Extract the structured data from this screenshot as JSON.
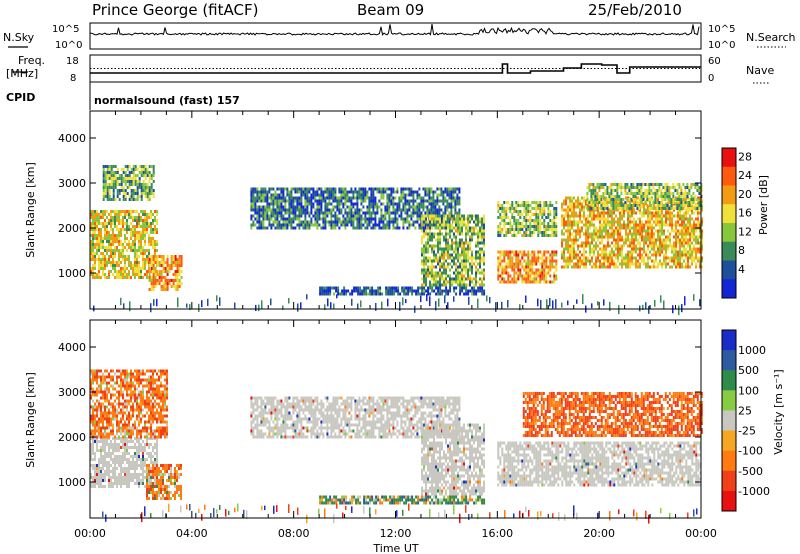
{
  "header": {
    "title": "Prince George (fitACF)",
    "beam": "Beam 09",
    "date": "25/Feb/2010"
  },
  "panels": {
    "nsky_label": "N.Sky",
    "nsky_ticks": [
      "10^5",
      "10^0"
    ],
    "nsearch_label": "N.Search",
    "nsearch_ticks": [
      "10^5",
      "10^0"
    ],
    "freq_label_1": "Freq.",
    "freq_label_2": "[MHz]",
    "freq_ticks": [
      "18",
      "8"
    ],
    "nave_label": "Nave",
    "nave_ticks": [
      "60",
      "0"
    ],
    "cpid_label": "CPID",
    "cpid_text": "normalsound (fast) 157"
  },
  "colors": {
    "power_scale": [
      "#1226d6",
      "#1e4f9c",
      "#3a8a5a",
      "#88c63c",
      "#f2e03a",
      "#f29b14",
      "#ff5a10",
      "#e81010"
    ],
    "velocity_scale": [
      "#1a2cc8",
      "#2d5aa0",
      "#2e8c4a",
      "#88cc44",
      "#c8c8c0",
      "#f5a623",
      "#ff7a10",
      "#f0401a",
      "#e81010"
    ],
    "ground_scatter": "#c8c8c0"
  },
  "chart_data": [
    {
      "type": "heatmap",
      "panel": "power",
      "xlabel": "",
      "ylabel": "Slant Range [km]",
      "x_ticks": [
        "00:00",
        "04:00",
        "08:00",
        "12:00",
        "16:00",
        "20:00",
        "00:00"
      ],
      "y_ticks": [
        "4000",
        "3000",
        "2000",
        "1000"
      ],
      "ylim": [
        200,
        4600
      ],
      "colorbar_label": "Power [dB]",
      "colorbar_ticks": [
        "28",
        "24",
        "20",
        "16",
        "12",
        "8",
        "4"
      ],
      "zlim": [
        0,
        32
      ],
      "regions": [
        {
          "t": [
            0.0,
            2.6
          ],
          "r": [
            900,
            2400
          ],
          "v": 18
        },
        {
          "t": [
            0.5,
            2.5
          ],
          "r": [
            2600,
            3400
          ],
          "v": 12
        },
        {
          "t": [
            2.3,
            3.6
          ],
          "r": [
            600,
            1400
          ],
          "v": 22
        },
        {
          "t": [
            6.3,
            14.5
          ],
          "r": [
            2000,
            2900
          ],
          "v": 8
        },
        {
          "t": [
            13.0,
            15.5
          ],
          "r": [
            700,
            2300
          ],
          "v": 14
        },
        {
          "t": [
            9.0,
            15.5
          ],
          "r": [
            550,
            700
          ],
          "v": 6
        },
        {
          "t": [
            16.0,
            18.3
          ],
          "r": [
            1800,
            2600
          ],
          "v": 14
        },
        {
          "t": [
            16.0,
            18.3
          ],
          "r": [
            800,
            1500
          ],
          "v": 22
        },
        {
          "t": [
            18.5,
            24.0
          ],
          "r": [
            1100,
            2700
          ],
          "v": 20
        },
        {
          "t": [
            19.5,
            24.0
          ],
          "r": [
            2400,
            3000
          ],
          "v": 14
        }
      ]
    },
    {
      "type": "heatmap",
      "panel": "velocity",
      "xlabel": "Time UT",
      "ylabel": "Slant Range [km]",
      "x_ticks": [
        "00:00",
        "04:00",
        "08:00",
        "12:00",
        "16:00",
        "20:00",
        "00:00"
      ],
      "y_ticks": [
        "4000",
        "3000",
        "2000",
        "1000"
      ],
      "ylim": [
        200,
        4600
      ],
      "colorbar_label": "Velocity [m s⁻¹]",
      "colorbar_ticks": [
        "1000",
        "500",
        "100",
        "25",
        "-25",
        "-100",
        "-500",
        "-1000"
      ],
      "regions": [
        {
          "t": [
            0.0,
            2.6
          ],
          "r": [
            900,
            2000
          ],
          "v": "ground"
        },
        {
          "t": [
            0.0,
            3.0
          ],
          "r": [
            2000,
            3500
          ],
          "v": -200
        },
        {
          "t": [
            2.2,
            3.6
          ],
          "r": [
            600,
            1400
          ],
          "v": -150
        },
        {
          "t": [
            6.3,
            14.5
          ],
          "r": [
            2000,
            2900
          ],
          "v": "ground"
        },
        {
          "t": [
            13.0,
            15.5
          ],
          "r": [
            700,
            2300
          ],
          "v": "ground"
        },
        {
          "t": [
            9.0,
            15.5
          ],
          "r": [
            550,
            700
          ],
          "v": 120
        },
        {
          "t": [
            16.0,
            24.0
          ],
          "r": [
            900,
            1900
          ],
          "v": "ground"
        },
        {
          "t": [
            17.0,
            24.0
          ],
          "r": [
            2000,
            3000
          ],
          "v": -300
        }
      ]
    }
  ]
}
